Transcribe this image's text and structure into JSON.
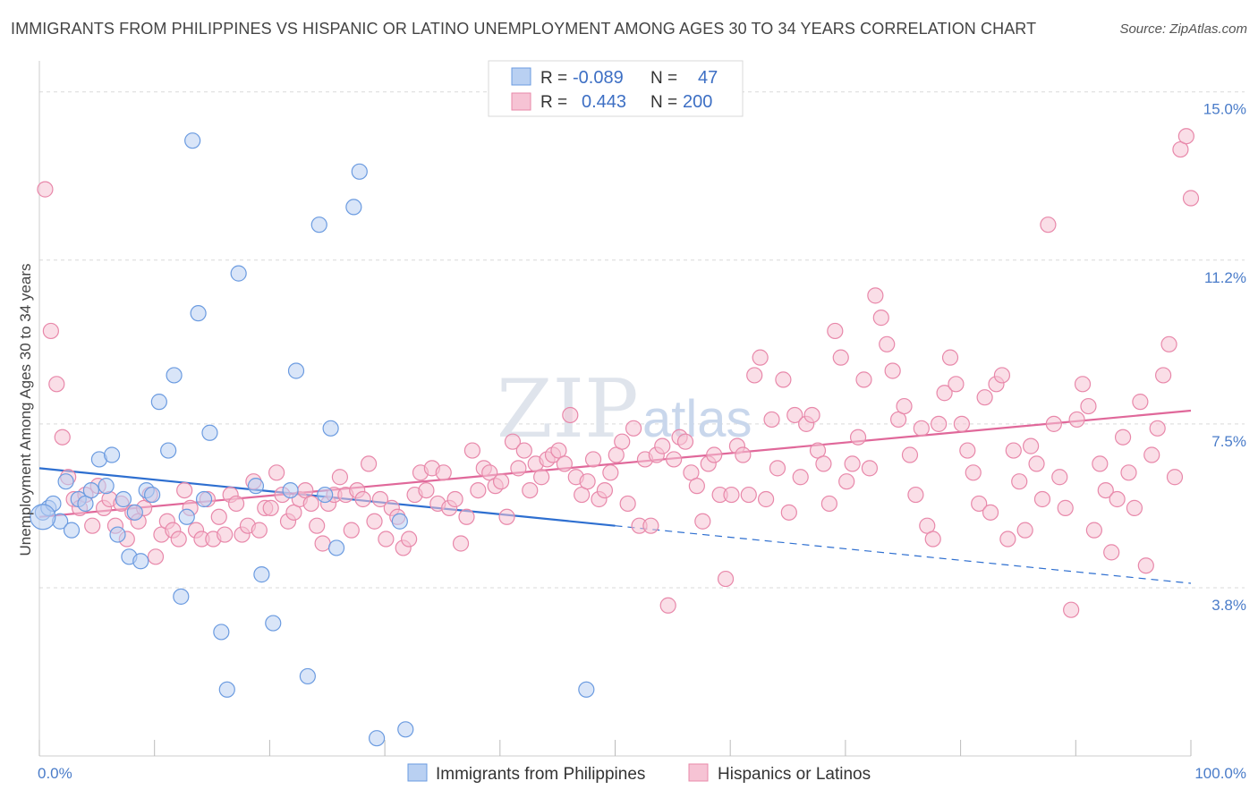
{
  "title": "IMMIGRANTS FROM PHILIPPINES VS HISPANIC OR LATINO UNEMPLOYMENT AMONG AGES 30 TO 34 YEARS CORRELATION CHART",
  "source": "Source: ZipAtlas.com",
  "watermark": {
    "zip": "ZIP",
    "atlas": "atlas"
  },
  "colors": {
    "blue": "#6b9be0",
    "blue_fill": "#b9d0f2",
    "pink": "#e888aa",
    "pink_fill": "#f6c3d4",
    "blue_line": "#2e6fd0",
    "pink_line": "#e0689a",
    "tick": "#4a7cc9"
  },
  "legend": {
    "rows": [
      {
        "r_label": "R =",
        "r_value": "-0.089",
        "n_label": "N =",
        "n_value": "47"
      },
      {
        "r_label": "R =",
        "r_value": "0.443",
        "n_label": "N =",
        "n_value": "200"
      }
    ]
  },
  "bottom_legend": [
    "Immigrants from Philippines",
    "Hispanics or Latinos"
  ],
  "chart_data": {
    "type": "scatter",
    "title": "IMMIGRANTS FROM PHILIPPINES VS HISPANIC OR LATINO UNEMPLOYMENT AMONG AGES 30 TO 34 YEARS CORRELATION CHART",
    "xlabel": "",
    "ylabel": "Unemployment Among Ages 30 to 34 years",
    "xlim": [
      0,
      100
    ],
    "ylim": [
      0,
      15.5
    ],
    "x_tick_labels": [
      "0.0%",
      "100.0%"
    ],
    "y_ticks": [
      3.8,
      7.5,
      11.2,
      15.0
    ],
    "y_tick_labels": [
      "3.8%",
      "7.5%",
      "11.2%",
      "15.0%"
    ],
    "grid": true,
    "series": [
      {
        "name": "Immigrants from Philippines",
        "trend": {
          "x": [
            0,
            50
          ],
          "y": [
            6.5,
            5.2
          ],
          "dashed_to": [
            100,
            3.9
          ]
        },
        "points": [
          [
            0.3,
            5.5
          ],
          [
            0.8,
            5.6
          ],
          [
            1.2,
            5.7
          ],
          [
            1.8,
            5.3
          ],
          [
            2.3,
            6.2
          ],
          [
            2.8,
            5.1
          ],
          [
            3.4,
            5.8
          ],
          [
            4.0,
            5.7
          ],
          [
            4.5,
            6.0
          ],
          [
            5.2,
            6.7
          ],
          [
            5.8,
            6.1
          ],
          [
            6.3,
            6.8
          ],
          [
            6.8,
            5.0
          ],
          [
            7.3,
            5.8
          ],
          [
            7.8,
            4.5
          ],
          [
            8.3,
            5.5
          ],
          [
            8.8,
            4.4
          ],
          [
            9.3,
            6.0
          ],
          [
            9.8,
            5.9
          ],
          [
            10.4,
            8.0
          ],
          [
            11.2,
            6.9
          ],
          [
            11.7,
            8.6
          ],
          [
            12.3,
            3.6
          ],
          [
            12.8,
            5.4
          ],
          [
            13.3,
            13.9
          ],
          [
            13.8,
            10.0
          ],
          [
            14.3,
            5.8
          ],
          [
            14.8,
            7.3
          ],
          [
            15.8,
            2.8
          ],
          [
            16.3,
            1.5
          ],
          [
            17.3,
            10.9
          ],
          [
            18.8,
            6.1
          ],
          [
            19.3,
            4.1
          ],
          [
            20.3,
            3.0
          ],
          [
            21.8,
            6.0
          ],
          [
            22.3,
            8.7
          ],
          [
            23.3,
            1.8
          ],
          [
            24.3,
            12.0
          ],
          [
            24.8,
            5.9
          ],
          [
            25.3,
            7.4
          ],
          [
            25.8,
            4.7
          ],
          [
            27.3,
            12.4
          ],
          [
            27.8,
            13.2
          ],
          [
            29.3,
            0.4
          ],
          [
            31.3,
            5.3
          ],
          [
            31.8,
            0.6
          ],
          [
            47.5,
            1.5
          ]
        ]
      },
      {
        "name": "Hispanics or Latinos",
        "trend": {
          "x": [
            0,
            100
          ],
          "y": [
            5.4,
            7.8
          ]
        },
        "points": [
          [
            0.5,
            12.8
          ],
          [
            1.0,
            9.6
          ],
          [
            1.5,
            8.4
          ],
          [
            2.0,
            7.2
          ],
          [
            2.5,
            6.3
          ],
          [
            3.0,
            5.8
          ],
          [
            3.5,
            5.6
          ],
          [
            4.0,
            5.9
          ],
          [
            4.6,
            5.2
          ],
          [
            5.1,
            6.1
          ],
          [
            5.6,
            5.6
          ],
          [
            6.1,
            5.8
          ],
          [
            6.6,
            5.2
          ],
          [
            7.1,
            5.7
          ],
          [
            7.6,
            4.9
          ],
          [
            8.1,
            5.5
          ],
          [
            8.6,
            5.3
          ],
          [
            9.1,
            5.6
          ],
          [
            9.6,
            5.9
          ],
          [
            10.1,
            4.5
          ],
          [
            10.6,
            5.0
          ],
          [
            11.1,
            5.3
          ],
          [
            11.6,
            5.1
          ],
          [
            12.1,
            4.9
          ],
          [
            12.6,
            6.0
          ],
          [
            13.1,
            5.6
          ],
          [
            13.6,
            5.1
          ],
          [
            14.1,
            4.9
          ],
          [
            14.6,
            5.8
          ],
          [
            15.1,
            4.9
          ],
          [
            15.6,
            5.4
          ],
          [
            16.1,
            5.0
          ],
          [
            16.6,
            5.9
          ],
          [
            17.1,
            5.7
          ],
          [
            17.6,
            5.0
          ],
          [
            18.1,
            5.2
          ],
          [
            18.6,
            6.2
          ],
          [
            19.1,
            5.1
          ],
          [
            19.6,
            5.6
          ],
          [
            20.1,
            5.6
          ],
          [
            20.6,
            6.4
          ],
          [
            21.1,
            5.9
          ],
          [
            21.6,
            5.3
          ],
          [
            22.1,
            5.5
          ],
          [
            22.6,
            5.8
          ],
          [
            23.1,
            6.0
          ],
          [
            23.6,
            5.7
          ],
          [
            24.1,
            5.2
          ],
          [
            24.6,
            4.8
          ],
          [
            25.1,
            5.7
          ],
          [
            25.6,
            5.9
          ],
          [
            26.1,
            6.3
          ],
          [
            26.6,
            5.9
          ],
          [
            27.1,
            5.1
          ],
          [
            27.6,
            6.0
          ],
          [
            28.1,
            5.8
          ],
          [
            28.6,
            6.6
          ],
          [
            29.1,
            5.3
          ],
          [
            29.6,
            5.8
          ],
          [
            30.1,
            4.9
          ],
          [
            30.6,
            5.6
          ],
          [
            31.1,
            5.4
          ],
          [
            31.6,
            4.7
          ],
          [
            32.1,
            4.9
          ],
          [
            32.6,
            5.9
          ],
          [
            33.1,
            6.4
          ],
          [
            33.6,
            6.0
          ],
          [
            34.1,
            6.5
          ],
          [
            34.6,
            5.7
          ],
          [
            35.1,
            6.4
          ],
          [
            35.6,
            5.6
          ],
          [
            36.1,
            5.8
          ],
          [
            36.6,
            4.8
          ],
          [
            37.1,
            5.4
          ],
          [
            37.6,
            6.9
          ],
          [
            38.1,
            6.0
          ],
          [
            38.6,
            6.5
          ],
          [
            39.1,
            6.4
          ],
          [
            39.6,
            6.1
          ],
          [
            40.1,
            6.2
          ],
          [
            40.6,
            5.4
          ],
          [
            41.1,
            7.1
          ],
          [
            41.6,
            6.5
          ],
          [
            42.1,
            6.9
          ],
          [
            42.6,
            6.0
          ],
          [
            43.1,
            6.6
          ],
          [
            43.6,
            6.3
          ],
          [
            44.1,
            6.7
          ],
          [
            44.6,
            6.8
          ],
          [
            45.1,
            6.9
          ],
          [
            45.6,
            6.6
          ],
          [
            46.1,
            7.7
          ],
          [
            46.6,
            6.3
          ],
          [
            47.1,
            5.9
          ],
          [
            47.6,
            6.2
          ],
          [
            48.1,
            6.7
          ],
          [
            48.6,
            5.8
          ],
          [
            49.1,
            6.0
          ],
          [
            49.6,
            6.4
          ],
          [
            50.1,
            6.8
          ],
          [
            50.6,
            7.1
          ],
          [
            51.1,
            5.7
          ],
          [
            51.6,
            7.4
          ],
          [
            52.1,
            5.2
          ],
          [
            52.6,
            6.7
          ],
          [
            53.1,
            5.2
          ],
          [
            53.6,
            6.8
          ],
          [
            54.1,
            7.0
          ],
          [
            54.6,
            3.4
          ],
          [
            55.1,
            6.7
          ],
          [
            55.6,
            7.2
          ],
          [
            56.1,
            7.1
          ],
          [
            56.6,
            6.4
          ],
          [
            57.1,
            6.1
          ],
          [
            57.6,
            5.3
          ],
          [
            58.1,
            6.6
          ],
          [
            58.6,
            6.8
          ],
          [
            59.1,
            5.9
          ],
          [
            59.6,
            4.0
          ],
          [
            60.1,
            5.9
          ],
          [
            60.6,
            7.0
          ],
          [
            61.1,
            6.8
          ],
          [
            61.6,
            5.9
          ],
          [
            62.1,
            8.6
          ],
          [
            62.6,
            9.0
          ],
          [
            63.1,
            5.8
          ],
          [
            63.6,
            7.6
          ],
          [
            64.1,
            6.5
          ],
          [
            64.6,
            8.5
          ],
          [
            65.1,
            5.5
          ],
          [
            65.6,
            7.7
          ],
          [
            66.1,
            6.3
          ],
          [
            66.6,
            7.5
          ],
          [
            67.1,
            7.7
          ],
          [
            67.6,
            6.9
          ],
          [
            68.1,
            6.6
          ],
          [
            68.6,
            5.7
          ],
          [
            69.1,
            9.6
          ],
          [
            69.6,
            9.0
          ],
          [
            70.1,
            6.2
          ],
          [
            70.6,
            6.6
          ],
          [
            71.1,
            7.2
          ],
          [
            71.6,
            8.5
          ],
          [
            72.1,
            6.5
          ],
          [
            72.6,
            10.4
          ],
          [
            73.1,
            9.9
          ],
          [
            73.6,
            9.3
          ],
          [
            74.1,
            8.7
          ],
          [
            74.6,
            7.6
          ],
          [
            75.1,
            7.9
          ],
          [
            75.6,
            6.8
          ],
          [
            76.1,
            5.9
          ],
          [
            76.6,
            7.4
          ],
          [
            77.1,
            5.2
          ],
          [
            77.6,
            4.9
          ],
          [
            78.1,
            7.5
          ],
          [
            78.6,
            8.2
          ],
          [
            79.1,
            9.0
          ],
          [
            79.6,
            8.4
          ],
          [
            80.1,
            7.5
          ],
          [
            80.6,
            6.9
          ],
          [
            81.1,
            6.4
          ],
          [
            81.6,
            5.7
          ],
          [
            82.1,
            8.1
          ],
          [
            82.6,
            5.5
          ],
          [
            83.1,
            8.4
          ],
          [
            83.6,
            8.6
          ],
          [
            84.1,
            4.9
          ],
          [
            84.6,
            6.9
          ],
          [
            85.1,
            6.2
          ],
          [
            85.6,
            5.1
          ],
          [
            86.1,
            7.0
          ],
          [
            86.6,
            6.6
          ],
          [
            87.1,
            5.8
          ],
          [
            87.6,
            12.0
          ],
          [
            88.1,
            7.5
          ],
          [
            88.6,
            6.3
          ],
          [
            89.1,
            5.6
          ],
          [
            89.6,
            3.3
          ],
          [
            90.1,
            7.6
          ],
          [
            90.6,
            8.4
          ],
          [
            91.1,
            7.9
          ],
          [
            91.6,
            5.1
          ],
          [
            92.1,
            6.6
          ],
          [
            92.6,
            6.0
          ],
          [
            93.1,
            4.6
          ],
          [
            93.6,
            5.8
          ],
          [
            94.1,
            7.2
          ],
          [
            94.6,
            6.4
          ],
          [
            95.1,
            5.6
          ],
          [
            95.6,
            8.0
          ],
          [
            96.1,
            4.3
          ],
          [
            96.6,
            6.8
          ],
          [
            97.1,
            7.4
          ],
          [
            97.6,
            8.6
          ],
          [
            98.1,
            9.3
          ],
          [
            98.6,
            6.3
          ],
          [
            99.1,
            13.7
          ],
          [
            99.6,
            14.0
          ],
          [
            100.0,
            12.6
          ]
        ]
      }
    ]
  }
}
